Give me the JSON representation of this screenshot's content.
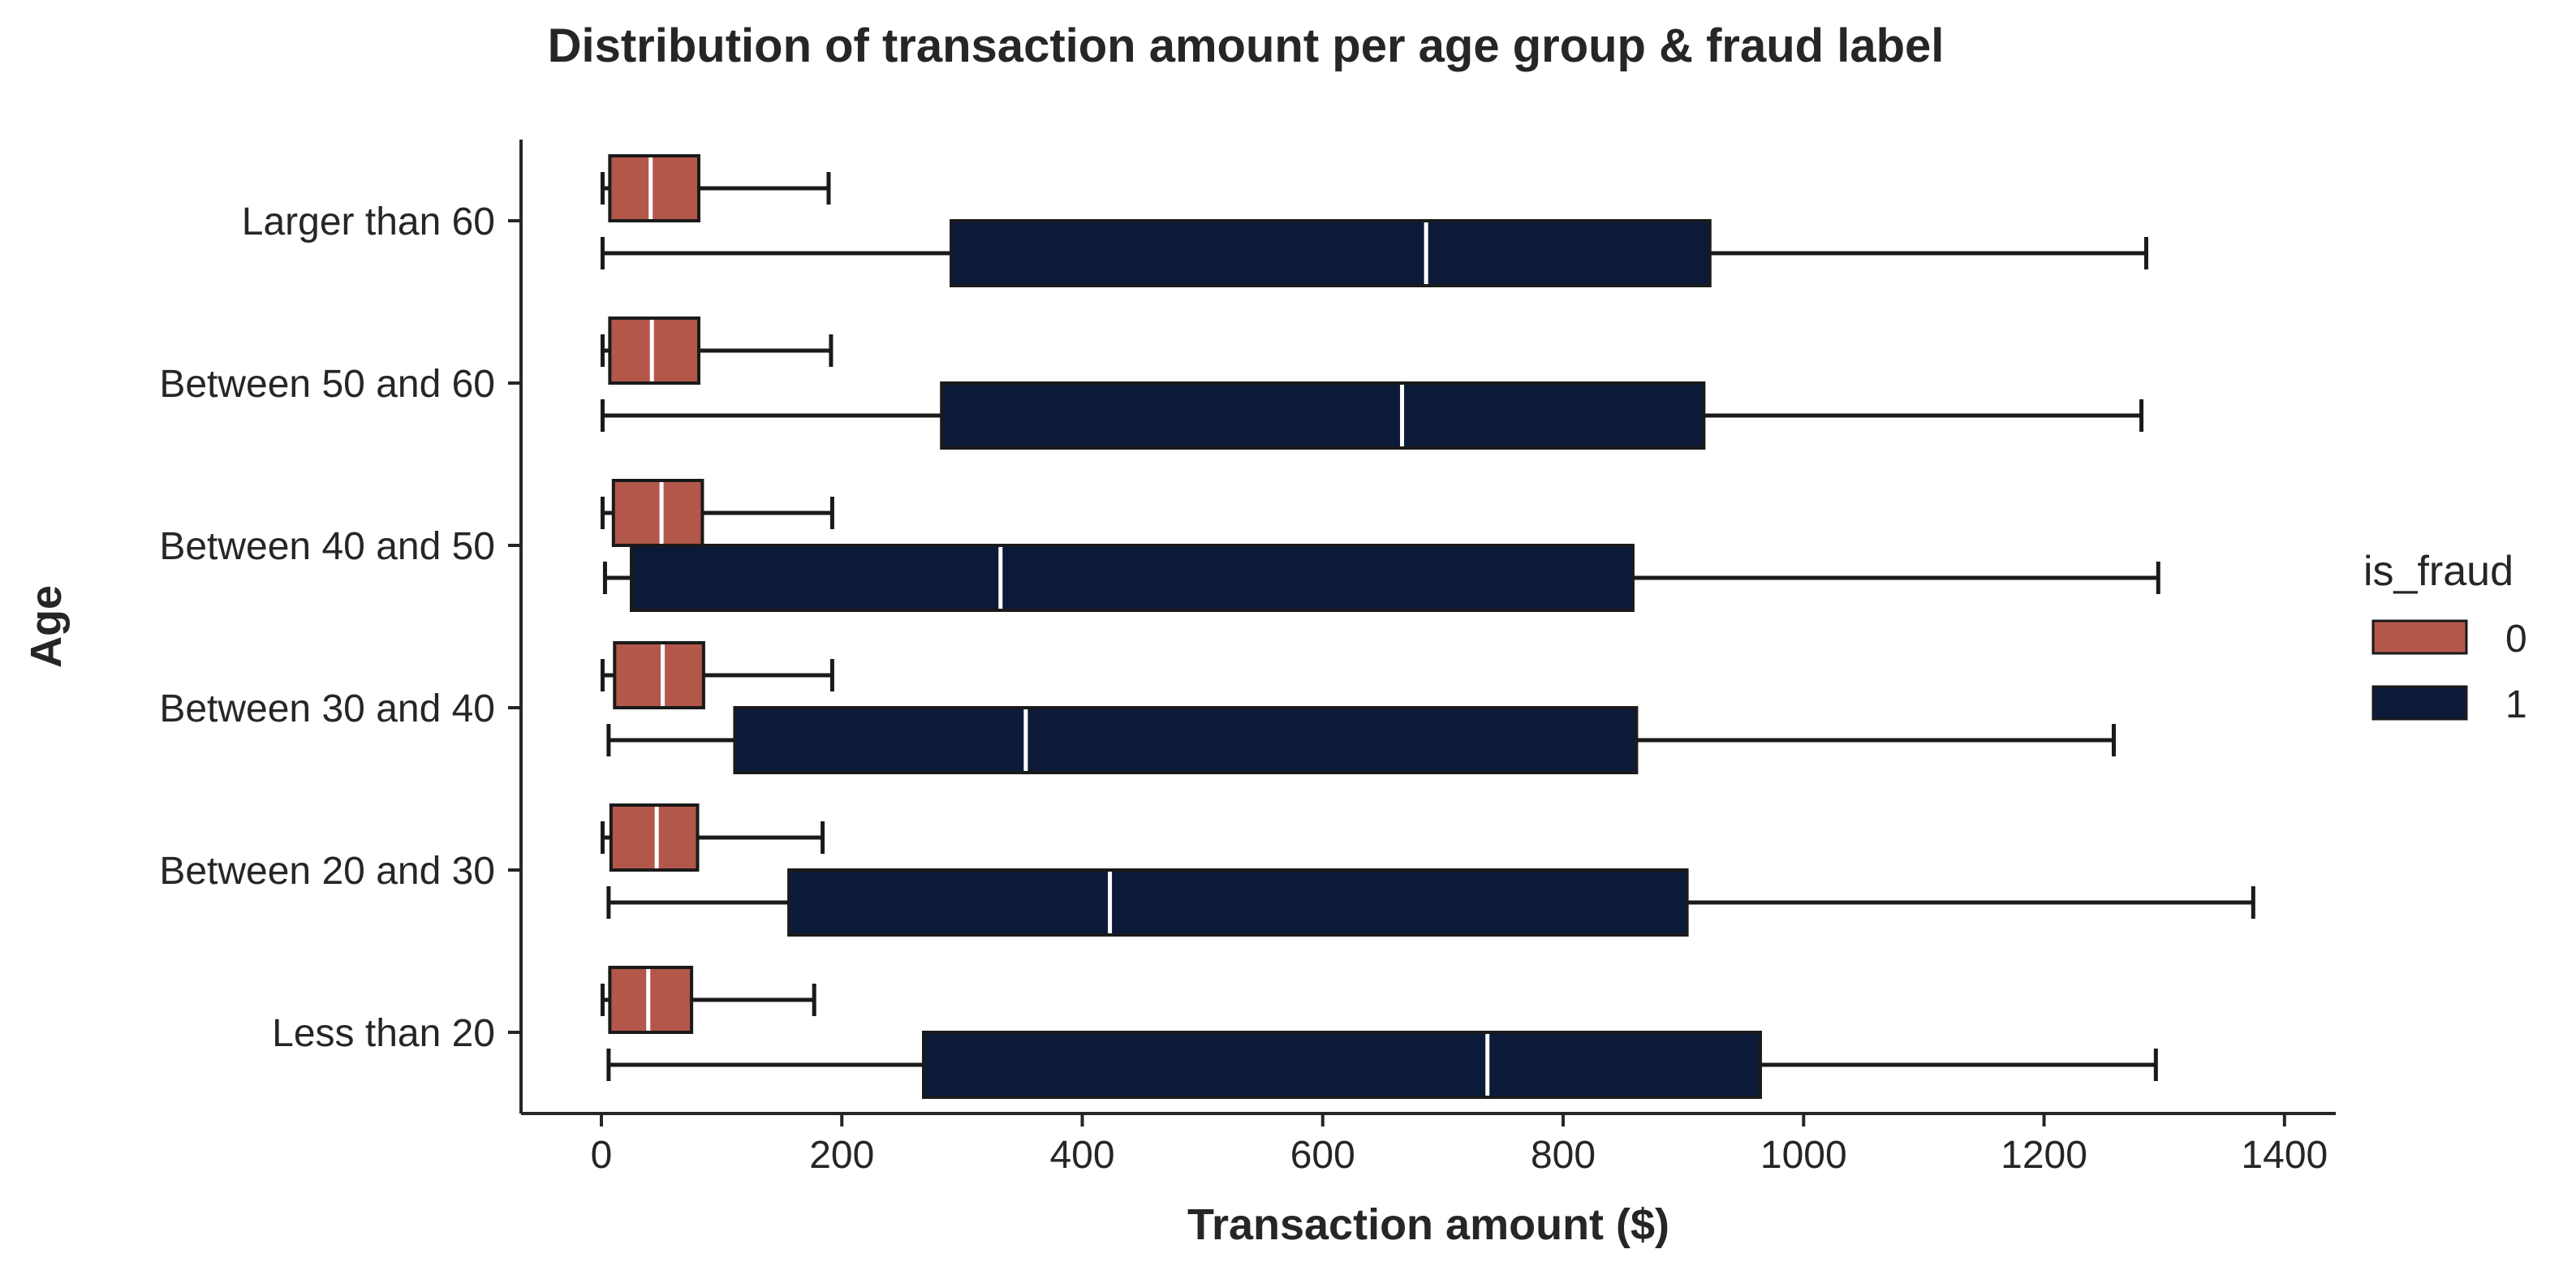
{
  "chart_data": {
    "type": "boxplot",
    "orientation": "horizontal",
    "title": "Distribution of transaction amount per age group & fraud label",
    "xlabel": "Transaction amount ($)",
    "ylabel": "Age",
    "xlim": [
      -70,
      1445
    ],
    "xticks": [
      0,
      200,
      400,
      600,
      800,
      1000,
      1200,
      1400
    ],
    "xtick_labels": [
      "0",
      "200",
      "400",
      "600",
      "800",
      "1000",
      "1200",
      "1400"
    ],
    "categories": [
      "Larger than 60",
      "Between 50 and 60",
      "Between 40 and 50",
      "Between 30 and 40",
      "Between 20 and 30",
      "Less than 20"
    ],
    "grid": false,
    "legend": {
      "title": "is_fraud",
      "placement": "right"
    },
    "series": [
      {
        "name": "0",
        "color": "#b3574a",
        "boxes": [
          {
            "whislo": 1,
            "q1": 7,
            "med": 41,
            "q3": 81,
            "whishi": 189
          },
          {
            "whislo": 1,
            "q1": 7,
            "med": 42,
            "q3": 81,
            "whishi": 191
          },
          {
            "whislo": 1,
            "q1": 10,
            "med": 50,
            "q3": 84,
            "whishi": 192
          },
          {
            "whislo": 1,
            "q1": 11,
            "med": 51,
            "q3": 85,
            "whishi": 192
          },
          {
            "whislo": 1,
            "q1": 8,
            "med": 46,
            "q3": 80,
            "whishi": 184
          },
          {
            "whislo": 1,
            "q1": 7,
            "med": 39,
            "q3": 75,
            "whishi": 177
          }
        ]
      },
      {
        "name": "1",
        "color": "#0c1a3a",
        "boxes": [
          {
            "whislo": 1,
            "q1": 291,
            "med": 686,
            "q3": 922,
            "whishi": 1285
          },
          {
            "whislo": 1,
            "q1": 283,
            "med": 666,
            "q3": 917,
            "whishi": 1281
          },
          {
            "whislo": 3,
            "q1": 25,
            "med": 332,
            "q3": 858,
            "whishi": 1295
          },
          {
            "whislo": 6,
            "q1": 111,
            "med": 353,
            "q3": 861,
            "whishi": 1258
          },
          {
            "whislo": 6,
            "q1": 156,
            "med": 423,
            "q3": 903,
            "whishi": 1374
          },
          {
            "whislo": 6,
            "q1": 268,
            "med": 737,
            "q3": 964,
            "whishi": 1293
          }
        ]
      }
    ]
  }
}
